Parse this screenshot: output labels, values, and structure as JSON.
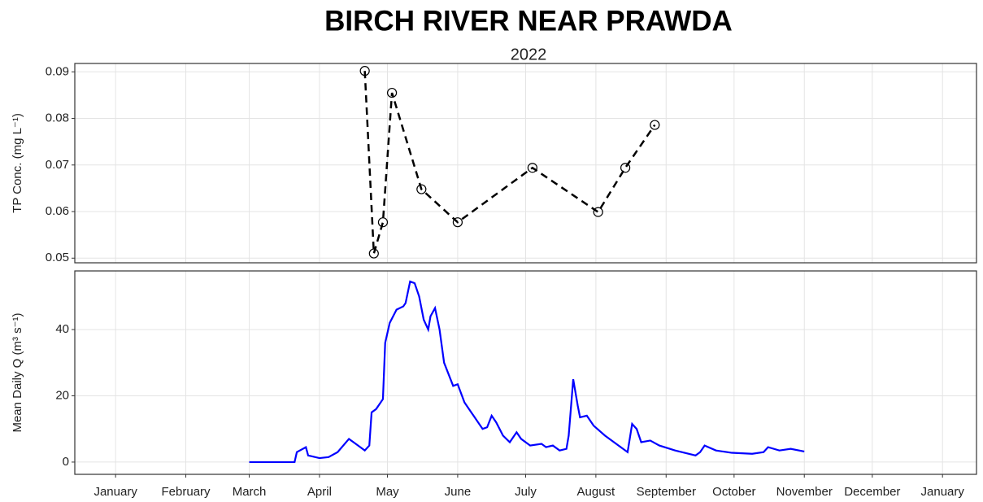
{
  "chart_data": [
    {
      "type": "line",
      "title": "BIRCH RIVER NEAR PRAWDA",
      "subtitle": "2022",
      "ylabel": "TP Conc. (mg L⁻¹)",
      "x": [
        110,
        114,
        118,
        122,
        135,
        151,
        184,
        213,
        225,
        238
      ],
      "values": [
        0.0902,
        0.051,
        0.0577,
        0.0855,
        0.0648,
        0.0577,
        0.0694,
        0.0599,
        0.0694,
        0.0786
      ],
      "color": "#000000",
      "linestyle": "dashed",
      "marker": "open-circle",
      "ylim": [
        0.049,
        0.0918
      ],
      "yticks": [
        0.05,
        0.06,
        0.07,
        0.08,
        0.09
      ],
      "grid": true
    },
    {
      "type": "line",
      "ylabel": "Mean Daily Q (m³ s⁻¹)",
      "x": [
        59,
        79,
        80,
        84,
        85,
        90,
        94,
        98,
        103,
        106,
        109,
        110,
        112,
        113,
        115,
        118,
        119,
        121,
        124,
        127,
        128,
        130,
        132,
        134,
        136,
        138,
        139,
        141,
        143,
        145,
        149,
        151,
        154,
        158,
        162,
        164,
        166,
        168,
        171,
        174,
        177,
        179,
        183,
        188,
        190,
        193,
        196,
        199,
        200,
        202,
        204,
        205,
        208,
        211,
        216,
        222,
        226,
        228,
        230,
        232,
        236,
        240,
        247,
        256,
        258,
        260,
        265,
        272,
        281,
        286,
        288,
        293,
        298,
        304
      ],
      "values": [
        0,
        0,
        3,
        4.5,
        2,
        1.2,
        1.5,
        3,
        7,
        5.5,
        4,
        3.5,
        5,
        15,
        16,
        19,
        36,
        42,
        46,
        47,
        48,
        54.5,
        54,
        50,
        43,
        40,
        44,
        46.5,
        40,
        30,
        23,
        23.5,
        18,
        14,
        10,
        10.5,
        14,
        12,
        8,
        6,
        9,
        7,
        5,
        5.5,
        4.5,
        5,
        3.5,
        4,
        8,
        25,
        17,
        13.5,
        14,
        11,
        8,
        5,
        3,
        11.5,
        10,
        6,
        6.5,
        5,
        3.5,
        2,
        3,
        5,
        3.5,
        2.8,
        2.5,
        3,
        4.5,
        3.5,
        4,
        3.2
      ],
      "color": "#0000ff",
      "linestyle": "solid",
      "xlim": [
        -18,
        380
      ],
      "xticks": [
        {
          "value": 0,
          "label": "January"
        },
        {
          "value": 31,
          "label": "February"
        },
        {
          "value": 59,
          "label": "March"
        },
        {
          "value": 90,
          "label": "April"
        },
        {
          "value": 120,
          "label": "May"
        },
        {
          "value": 151,
          "label": "June"
        },
        {
          "value": 181,
          "label": "July"
        },
        {
          "value": 212,
          "label": "August"
        },
        {
          "value": 243,
          "label": "September"
        },
        {
          "value": 273,
          "label": "October"
        },
        {
          "value": 304,
          "label": "November"
        },
        {
          "value": 334,
          "label": "December"
        },
        {
          "value": 365,
          "label": "January"
        }
      ],
      "ylim": [
        -3.7,
        57.7
      ],
      "yticks": [
        0,
        20,
        40
      ],
      "grid": true
    }
  ]
}
